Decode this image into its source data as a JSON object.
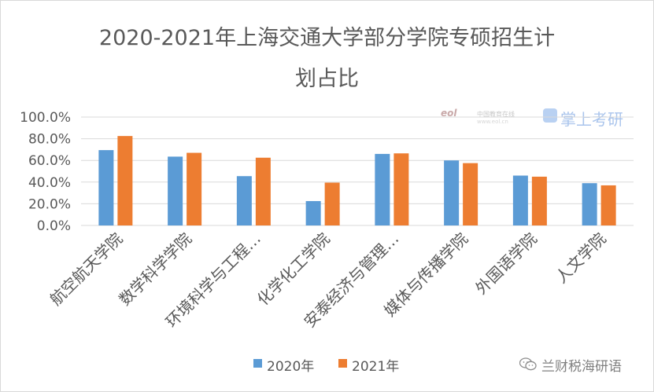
{
  "title_line1": "2020-2021年上海交通大学部分学院专硕招生计",
  "title_line2": "划占比",
  "watermark": {
    "logo_text": "eol",
    "cn_text": "中国教育在线",
    "url_text": "www.eol.cn",
    "brand_text": "掌上考研"
  },
  "wechat_account": "兰财税海研语",
  "colors": {
    "series_2020": "#5b9bd5",
    "series_2021": "#ed7d31",
    "grid": "#d9d9d9",
    "text": "#595959"
  },
  "chart_data": {
    "type": "bar",
    "title": "2020-2021年上海交通大学部分学院专硕招生计划占比",
    "categories": [
      "航空航天学院",
      "数学科学学院",
      "环境科学与工程…",
      "化学化工学院",
      "安泰经济与管理…",
      "媒体与传播学院",
      "外国语学院",
      "人文学院"
    ],
    "series": [
      {
        "name": "2020年",
        "values": [
          69.5,
          63.5,
          45.5,
          22.5,
          66.0,
          60.0,
          46.0,
          39.0
        ]
      },
      {
        "name": "2021年",
        "values": [
          82.5,
          67.0,
          62.5,
          39.5,
          66.5,
          57.5,
          45.0,
          37.0
        ]
      }
    ],
    "yticks": [
      "0.0%",
      "20.0%",
      "40.0%",
      "60.0%",
      "80.0%",
      "100.0%"
    ],
    "ylim": [
      0,
      100
    ],
    "grid": true,
    "legend_position": "bottom"
  }
}
